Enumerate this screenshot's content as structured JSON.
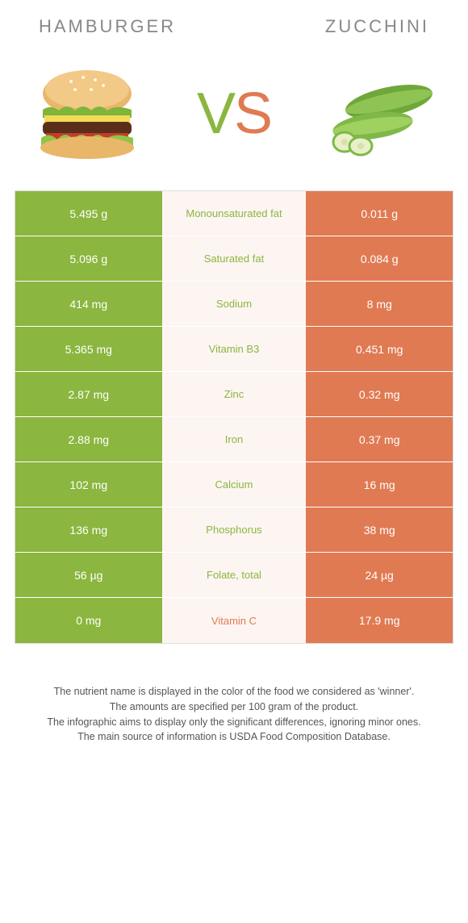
{
  "header": {
    "left": "Hamburger",
    "right": "Zucchini"
  },
  "vs": {
    "v": "V",
    "s": "S"
  },
  "colors": {
    "green": "#8bb63f",
    "orange": "#e07a53",
    "mid_bg": "#fdf5f2"
  },
  "rows": [
    {
      "left": "5.495 g",
      "mid": "Monounsaturated fat",
      "right": "0.011 g",
      "winner": "left"
    },
    {
      "left": "5.096 g",
      "mid": "Saturated fat",
      "right": "0.084 g",
      "winner": "left"
    },
    {
      "left": "414 mg",
      "mid": "Sodium",
      "right": "8 mg",
      "winner": "left"
    },
    {
      "left": "5.365 mg",
      "mid": "Vitamin B3",
      "right": "0.451 mg",
      "winner": "left"
    },
    {
      "left": "2.87 mg",
      "mid": "Zinc",
      "right": "0.32 mg",
      "winner": "left"
    },
    {
      "left": "2.88 mg",
      "mid": "Iron",
      "right": "0.37 mg",
      "winner": "left"
    },
    {
      "left": "102 mg",
      "mid": "Calcium",
      "right": "16 mg",
      "winner": "left"
    },
    {
      "left": "136 mg",
      "mid": "Phosphorus",
      "right": "38 mg",
      "winner": "left"
    },
    {
      "left": "56 µg",
      "mid": "Folate, total",
      "right": "24 µg",
      "winner": "left"
    },
    {
      "left": "0 mg",
      "mid": "Vitamin C",
      "right": "17.9 mg",
      "winner": "right"
    }
  ],
  "footer": {
    "line1": "The nutrient name is displayed in the color of the food we considered as 'winner'.",
    "line2": "The amounts are specified per 100 gram of the product.",
    "line3": "The infographic aims to display only the significant differences, ignoring minor ones.",
    "line4": "The main source of information is USDA Food Composition Database."
  }
}
